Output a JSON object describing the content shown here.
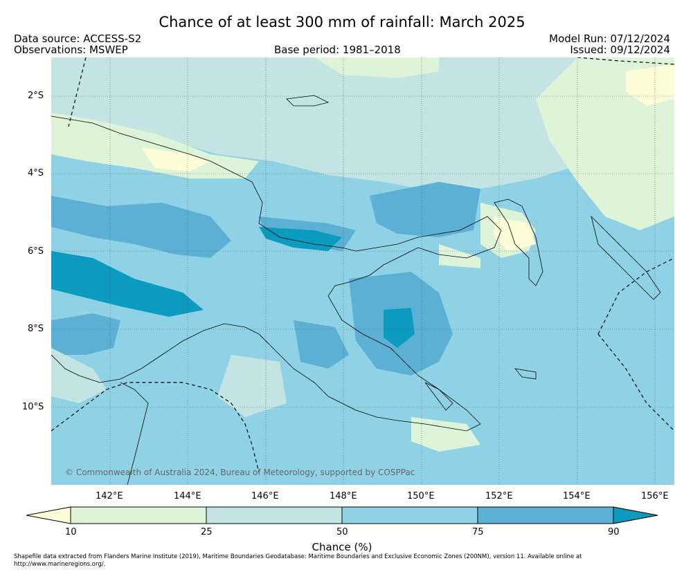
{
  "title": "Chance of at least 300 mm of rainfall: March 2025",
  "header": {
    "data_source": "Data source: ACCESS-S2",
    "observations": "Observations: MSWEP",
    "base_period": "Base period: 1981–2018",
    "model_run": "Model Run: 07/12/2024",
    "issued": "Issued: 09/12/2024"
  },
  "map": {
    "lat_labels": [
      "2°S",
      "4°S",
      "6°S",
      "8°S",
      "10°S"
    ],
    "lon_labels": [
      "142°E",
      "144°E",
      "146°E",
      "148°E",
      "150°E",
      "152°E",
      "154°E",
      "156°E"
    ],
    "copyright": "© Commonwealth of Australia 2024, Bureau of Meteorology, supported by COSPPac"
  },
  "colorbar": {
    "label": "Chance (%)",
    "ticks": [
      "10",
      "25",
      "50",
      "75",
      "90"
    ],
    "colors": [
      "#fffcd8",
      "#def4d8",
      "#c3e4e3",
      "#8fd2e6",
      "#5bb0d4",
      "#0b9bbf"
    ]
  },
  "footer": "Shapefile data extracted from Flanders Marine Institute (2019), Maritime Boundaries Geodatabase: Maritime Boundaries and Exclusive Economic Zones (200NM), version 11. Available online at http://www.marineregions.org/."
}
